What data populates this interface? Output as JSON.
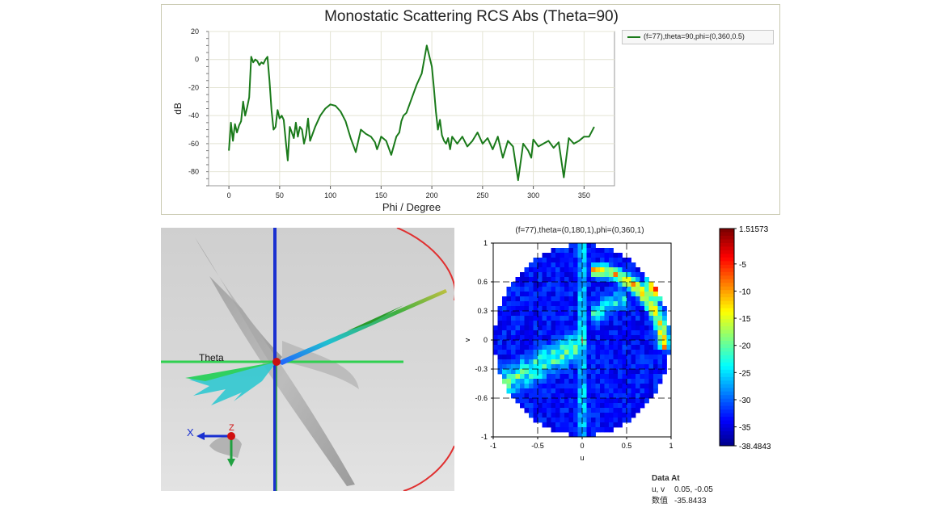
{
  "rcs_plot": {
    "title": "Monostatic Scattering RCS Abs (Theta=90)",
    "xlabel": "Phi / Degree",
    "ylabel": "dB",
    "legend": "(f=77),theta=90,phi=(0,360,0.5)",
    "line_color": "#1a7a1a"
  },
  "view3d": {
    "theta_label": "Theta",
    "x_axis_label": "X",
    "z_axis_label": "Z"
  },
  "uv_plot": {
    "title": "(f=77),theta=(0,180,1),phi=(0,360,1)",
    "xlabel": "u",
    "ylabel": "v",
    "colormap": "jet"
  },
  "colorbar": {
    "max_label": "1.51573",
    "min_label": "-38.4843",
    "ticks": [
      "-5",
      "-10",
      "-15",
      "-20",
      "-25",
      "-30",
      "-35"
    ]
  },
  "data_at": {
    "header": "Data At",
    "uv_label": "u, v",
    "uv_value": "0.05, -0.05",
    "value_label": "数值",
    "value": "-35.8433"
  },
  "chart_data": [
    {
      "type": "line",
      "title": "Monostatic Scattering RCS Abs (Theta=90)",
      "xlabel": "Phi / Degree",
      "ylabel": "dB",
      "xlim": [
        -20,
        380
      ],
      "ylim": [
        -90,
        20
      ],
      "xticks": [
        0,
        50,
        100,
        150,
        200,
        250,
        300,
        350
      ],
      "yticks": [
        20,
        0,
        -20,
        -40,
        -60,
        -80
      ],
      "grid": true,
      "legend_position": "right",
      "series": [
        {
          "name": "(f=77),theta=90,phi=(0,360,0.5)",
          "x": [
            0,
            2,
            4,
            6,
            8,
            10,
            12,
            14,
            16,
            18,
            20,
            22,
            24,
            26,
            28,
            30,
            32,
            34,
            36,
            38,
            40,
            42,
            44,
            46,
            48,
            50,
            52,
            54,
            56,
            58,
            60,
            62,
            64,
            66,
            68,
            70,
            72,
            74,
            76,
            78,
            80,
            85,
            90,
            95,
            100,
            105,
            110,
            115,
            120,
            125,
            130,
            135,
            140,
            142,
            144,
            146,
            148,
            150,
            155,
            160,
            165,
            168,
            170,
            172,
            175,
            180,
            185,
            190,
            195,
            200,
            202,
            204,
            206,
            208,
            210,
            212,
            214,
            216,
            218,
            220,
            225,
            230,
            235,
            240,
            245,
            250,
            255,
            260,
            265,
            270,
            275,
            280,
            285,
            290,
            295,
            298,
            300,
            305,
            310,
            315,
            320,
            325,
            330,
            335,
            340,
            345,
            350,
            355,
            360
          ],
          "y": [
            -65,
            -45,
            -58,
            -46,
            -52,
            -47,
            -44,
            -30,
            -40,
            -34,
            -27,
            2,
            -2,
            0,
            -1,
            -4,
            -2,
            -3,
            0,
            2,
            -15,
            -36,
            -50,
            -48,
            -36,
            -42,
            -40,
            -43,
            -58,
            -72,
            -48,
            -52,
            -56,
            -45,
            -55,
            -48,
            -50,
            -60,
            -54,
            -42,
            -58,
            -48,
            -40,
            -35,
            -32,
            -33,
            -37,
            -44,
            -56,
            -66,
            -50,
            -53,
            -55,
            -57,
            -59,
            -64,
            -60,
            -55,
            -58,
            -68,
            -55,
            -52,
            -44,
            -40,
            -38,
            -28,
            -18,
            -10,
            10,
            -5,
            -20,
            -37,
            -50,
            -43,
            -54,
            -58,
            -60,
            -56,
            -64,
            -55,
            -60,
            -55,
            -62,
            -58,
            -52,
            -60,
            -56,
            -64,
            -55,
            -70,
            -58,
            -62,
            -86,
            -60,
            -65,
            -70,
            -57,
            -62,
            -60,
            -58,
            -63,
            -59,
            -84,
            -56,
            -60,
            -58,
            -55,
            -55,
            -48
          ]
        }
      ]
    },
    {
      "type": "heatmap",
      "title": "(f=77),theta=(0,180,1),phi=(0,360,1)",
      "xlabel": "u",
      "ylabel": "v",
      "xlim": [
        -1,
        1
      ],
      "ylim": [
        -1,
        1
      ],
      "xticks": [
        -1,
        -0.5,
        0,
        0.5,
        1
      ],
      "yticks": [
        1,
        0.6,
        0.3,
        0,
        -0.3,
        -0.6,
        -1
      ],
      "color_range": [
        -38.4843,
        1.51573
      ]
    }
  ]
}
